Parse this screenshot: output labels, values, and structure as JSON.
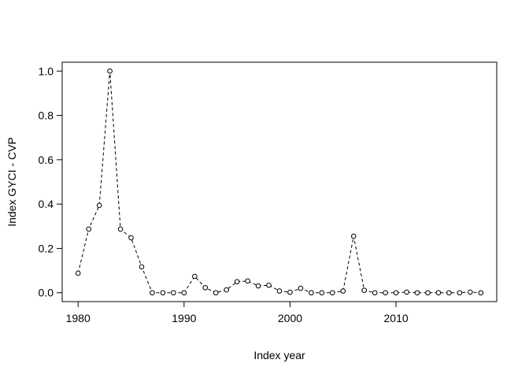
{
  "chart_data": {
    "type": "line",
    "title": "",
    "xlabel": "Index year",
    "ylabel": "Index GYCI - CVP",
    "xlim": [
      1978.5,
      2019.5
    ],
    "ylim": [
      -0.04,
      1.04
    ],
    "x_ticks": [
      1980,
      1990,
      2000,
      2010
    ],
    "y_ticks": [
      0.0,
      0.2,
      0.4,
      0.6,
      0.8,
      1.0
    ],
    "y_tick_labels": [
      "0.0",
      "0.2",
      "0.4",
      "0.6",
      "0.8",
      "1.0"
    ],
    "line_style": "dashed",
    "marker": "open-circle",
    "grid": false,
    "legend": "none",
    "series": [
      {
        "x": [
          1980,
          1981,
          1982,
          1983,
          1984,
          1985,
          1986,
          1987,
          1988,
          1989,
          1990,
          1991,
          1992,
          1993,
          1994,
          1995,
          1996,
          1997,
          1998,
          1999,
          2000,
          2001,
          2002,
          2003,
          2004,
          2005,
          2006,
          2007,
          2008,
          2009,
          2010,
          2011,
          2012,
          2013,
          2014,
          2015,
          2016,
          2017,
          2018
        ],
        "y": [
          0.088,
          0.287,
          0.394,
          1.0,
          0.287,
          0.248,
          0.117,
          0.0,
          0.0,
          0.0,
          0.0,
          0.074,
          0.023,
          0.0,
          0.013,
          0.05,
          0.053,
          0.031,
          0.034,
          0.008,
          0.002,
          0.02,
          0.0,
          0.0,
          0.0,
          0.008,
          0.255,
          0.011,
          0.0,
          0.0,
          0.0,
          0.003,
          0.0,
          0.0,
          0.0,
          0.0,
          0.0,
          0.003,
          0.0
        ]
      }
    ]
  }
}
